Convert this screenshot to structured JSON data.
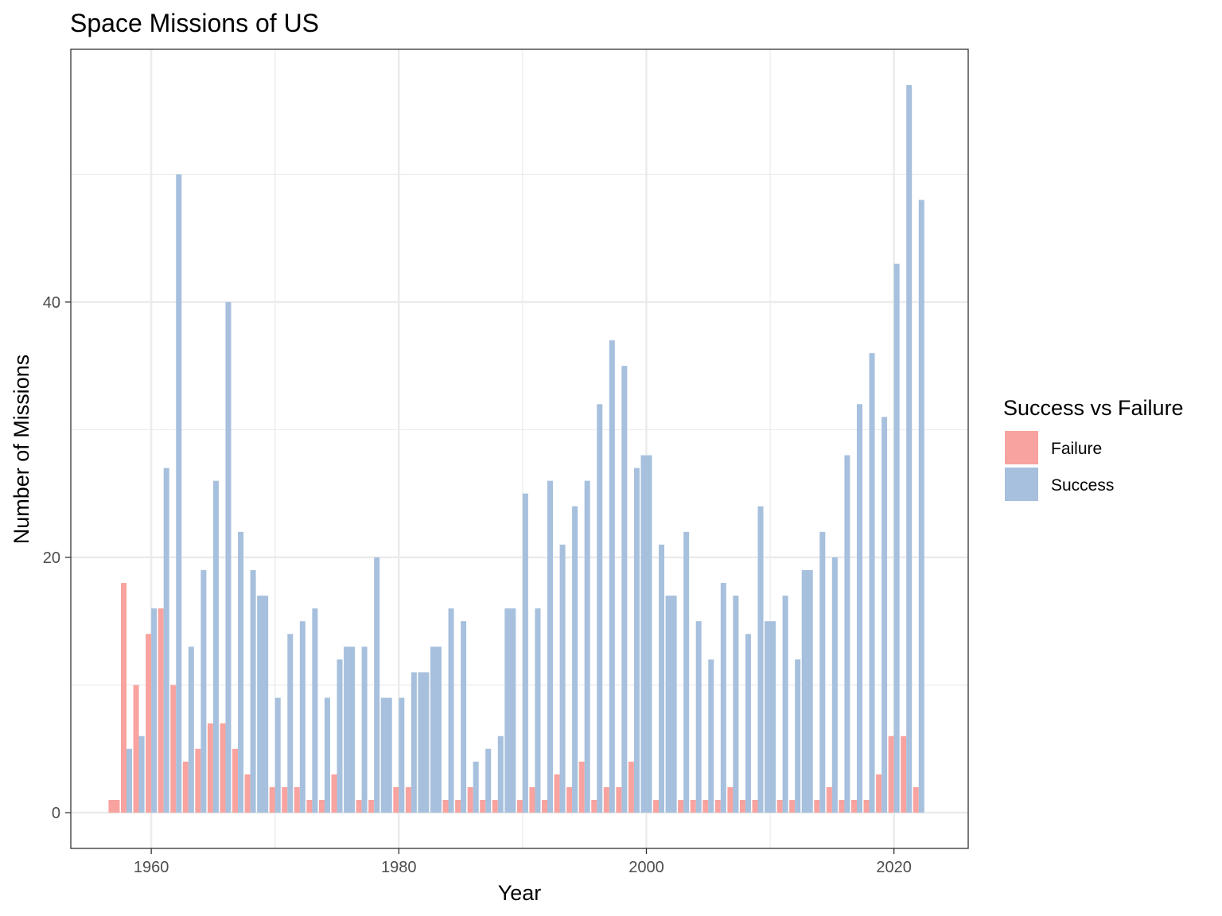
{
  "chart_data": {
    "type": "bar",
    "title": "Space Missions of US",
    "xlabel": "Year",
    "ylabel": "Number of Missions",
    "xlim": [
      1953.5,
      2026
    ],
    "ylim": [
      -2.8,
      59.8
    ],
    "x_ticks": [
      1960,
      1980,
      2000,
      2020
    ],
    "y_ticks": [
      0,
      20,
      40
    ],
    "grid": true,
    "position": "dodge",
    "legend": {
      "title": "Success vs Failure",
      "placement": "right",
      "entries": [
        "Failure",
        "Success"
      ]
    },
    "colors": {
      "Failure": "#f8a39f",
      "Success": "#a6c0dd"
    },
    "series": [
      {
        "name": "Failure",
        "x": [
          1957,
          1958,
          1959,
          1960,
          1961,
          1962,
          1963,
          1964,
          1965,
          1966,
          1967,
          1968,
          1970,
          1971,
          1972,
          1973,
          1974,
          1975,
          1977,
          1978,
          1980,
          1981,
          1984,
          1985,
          1986,
          1987,
          1988,
          1990,
          1991,
          1992,
          1993,
          1994,
          1995,
          1996,
          1997,
          1998,
          1999,
          2001,
          2003,
          2004,
          2005,
          2006,
          2007,
          2008,
          2009,
          2011,
          2012,
          2014,
          2015,
          2016,
          2017,
          2018,
          2019,
          2020,
          2021,
          2022
        ],
        "values": [
          1,
          18,
          10,
          14,
          16,
          10,
          4,
          5,
          7,
          7,
          5,
          3,
          2,
          2,
          2,
          1,
          1,
          3,
          1,
          1,
          2,
          2,
          1,
          1,
          2,
          1,
          1,
          1,
          2,
          1,
          3,
          2,
          4,
          1,
          2,
          2,
          4,
          1,
          1,
          1,
          1,
          1,
          2,
          1,
          1,
          1,
          1,
          1,
          2,
          1,
          1,
          1,
          3,
          6,
          6,
          2
        ]
      },
      {
        "name": "Success",
        "x": [
          1958,
          1959,
          1960,
          1961,
          1962,
          1963,
          1964,
          1965,
          1966,
          1967,
          1968,
          1969,
          1970,
          1971,
          1972,
          1973,
          1974,
          1975,
          1976,
          1977,
          1978,
          1979,
          1980,
          1981,
          1982,
          1983,
          1984,
          1985,
          1986,
          1987,
          1988,
          1989,
          1990,
          1991,
          1992,
          1993,
          1994,
          1995,
          1996,
          1997,
          1998,
          1999,
          2000,
          2001,
          2002,
          2003,
          2004,
          2005,
          2006,
          2007,
          2008,
          2009,
          2010,
          2011,
          2012,
          2013,
          2014,
          2015,
          2016,
          2017,
          2018,
          2019,
          2020,
          2021,
          2022
        ],
        "values": [
          5,
          6,
          16,
          27,
          50,
          13,
          19,
          26,
          40,
          22,
          19,
          17,
          9,
          14,
          15,
          16,
          9,
          12,
          13,
          13,
          20,
          9,
          9,
          11,
          11,
          13,
          16,
          15,
          4,
          5,
          6,
          16,
          25,
          16,
          26,
          21,
          24,
          26,
          32,
          37,
          35,
          27,
          28,
          21,
          17,
          22,
          15,
          12,
          18,
          17,
          14,
          24,
          15,
          17,
          12,
          19,
          22,
          20,
          28,
          32,
          36,
          31,
          43,
          57,
          48
        ]
      }
    ]
  }
}
